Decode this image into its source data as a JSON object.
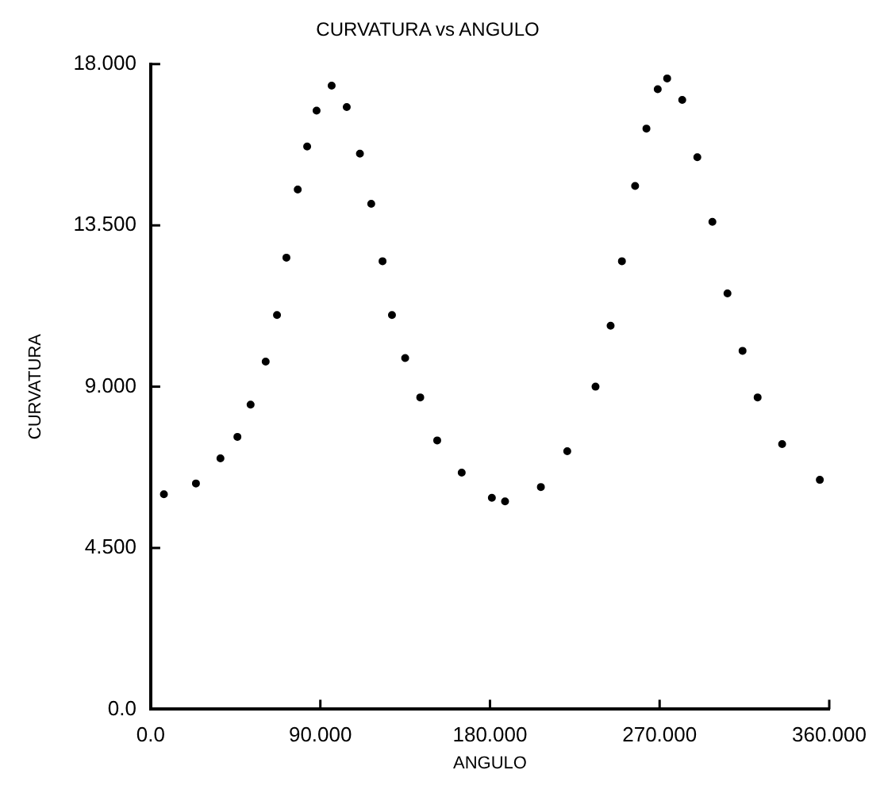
{
  "chart_data": {
    "type": "scatter",
    "title": "CURVATURA vs ANGULO",
    "xlabel": "ANGULO",
    "ylabel": "CURVATURA",
    "marker": "circle",
    "grid": false,
    "xlim": [
      0,
      360
    ],
    "xticks": [
      {
        "value": 0,
        "label": "0.0"
      },
      {
        "value": 90,
        "label": "90.000"
      },
      {
        "value": 180,
        "label": "180.000"
      },
      {
        "value": 270,
        "label": "270.000"
      },
      {
        "value": 360,
        "label": "360.000"
      }
    ],
    "ylim": [
      0,
      18
    ],
    "yticks": [
      {
        "value": 0,
        "label": "0.0"
      },
      {
        "value": 4.5,
        "label": "4.500"
      },
      {
        "value": 9,
        "label": "9.000"
      },
      {
        "value": 13.5,
        "label": "13.500"
      },
      {
        "value": 18,
        "label": "18.000"
      }
    ],
    "series": [
      {
        "color": "#000000",
        "x": [
          7,
          24,
          37,
          46,
          53,
          61,
          67,
          72,
          78,
          83,
          88,
          96,
          104,
          111,
          117,
          123,
          128,
          135,
          143,
          152,
          165,
          181,
          188,
          207,
          221,
          236,
          244,
          250,
          257,
          263,
          269,
          274,
          282,
          290,
          298,
          306,
          314,
          322,
          335,
          355
        ],
        "values": [
          6.0,
          6.3,
          7.0,
          7.6,
          8.5,
          9.7,
          11.0,
          12.6,
          14.5,
          15.7,
          16.7,
          17.4,
          16.8,
          15.5,
          14.1,
          12.5,
          11.0,
          9.8,
          8.7,
          7.5,
          6.6,
          5.9,
          5.8,
          6.2,
          7.2,
          9.0,
          10.7,
          12.5,
          14.6,
          16.2,
          17.3,
          17.6,
          17.0,
          15.4,
          13.6,
          11.6,
          10.0,
          8.7,
          7.4,
          6.4
        ]
      }
    ]
  }
}
